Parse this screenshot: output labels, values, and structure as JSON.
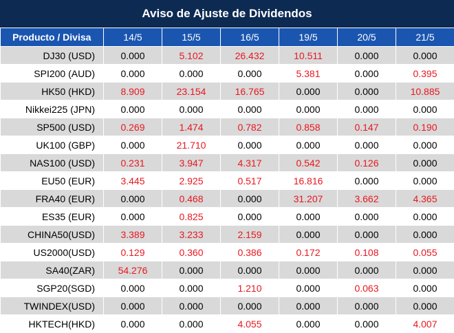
{
  "title": "Aviso de Ajuste de Dividendos",
  "header": {
    "product_col": "Producto / Divisa",
    "dates": [
      "14/5",
      "15/5",
      "16/5",
      "19/5",
      "20/5",
      "21/5"
    ]
  },
  "colors": {
    "title_bg": "#0d2a52",
    "header_bg": "#1a56b0",
    "row_alt_bg": "#d9d9d9",
    "nonzero_value": "#e8171e"
  },
  "rows": [
    {
      "product": "DJ30 (USD)",
      "values": [
        "0.000",
        "5.102",
        "26.432",
        "10.511",
        "0.000",
        "0.000"
      ]
    },
    {
      "product": "SPI200 (AUD)",
      "values": [
        "0.000",
        "0.000",
        "0.000",
        "5.381",
        "0.000",
        "0.395"
      ]
    },
    {
      "product": "HK50 (HKD)",
      "values": [
        "8.909",
        "23.154",
        "16.765",
        "0.000",
        "0.000",
        "10.885"
      ]
    },
    {
      "product": "Nikkei225 (JPN)",
      "values": [
        "0.000",
        "0.000",
        "0.000",
        "0.000",
        "0.000",
        "0.000"
      ]
    },
    {
      "product": "SP500 (USD)",
      "values": [
        "0.269",
        "1.474",
        "0.782",
        "0.858",
        "0.147",
        "0.190"
      ]
    },
    {
      "product": "UK100 (GBP)",
      "values": [
        "0.000",
        "21.710",
        "0.000",
        "0.000",
        "0.000",
        "0.000"
      ]
    },
    {
      "product": "NAS100 (USD)",
      "values": [
        "0.231",
        "3.947",
        "4.317",
        "0.542",
        "0.126",
        "0.000"
      ]
    },
    {
      "product": "EU50 (EUR)",
      "values": [
        "3.445",
        "2.925",
        "0.517",
        "16.816",
        "0.000",
        "0.000"
      ]
    },
    {
      "product": "FRA40 (EUR)",
      "values": [
        "0.000",
        "0.468",
        "0.000",
        "31.207",
        "3.662",
        "4.365"
      ]
    },
    {
      "product": "ES35 (EUR)",
      "values": [
        "0.000",
        "0.825",
        "0.000",
        "0.000",
        "0.000",
        "0.000"
      ]
    },
    {
      "product": "CHINA50(USD)",
      "values": [
        "3.389",
        "3.233",
        "2.159",
        "0.000",
        "0.000",
        "0.000"
      ]
    },
    {
      "product": "US2000(USD)",
      "values": [
        "0.129",
        "0.360",
        "0.386",
        "0.172",
        "0.108",
        "0.055"
      ]
    },
    {
      "product": "SA40(ZAR)",
      "values": [
        "54.276",
        "0.000",
        "0.000",
        "0.000",
        "0.000",
        "0.000"
      ]
    },
    {
      "product": "SGP20(SGD)",
      "values": [
        "0.000",
        "0.000",
        "1.210",
        "0.000",
        "0.063",
        "0.000"
      ]
    },
    {
      "product": "TWINDEX(USD)",
      "values": [
        "0.000",
        "0.000",
        "0.000",
        "0.000",
        "0.000",
        "0.000"
      ]
    },
    {
      "product": "HKTECH(HKD)",
      "values": [
        "0.000",
        "0.000",
        "4.055",
        "0.000",
        "0.000",
        "4.007"
      ]
    }
  ]
}
